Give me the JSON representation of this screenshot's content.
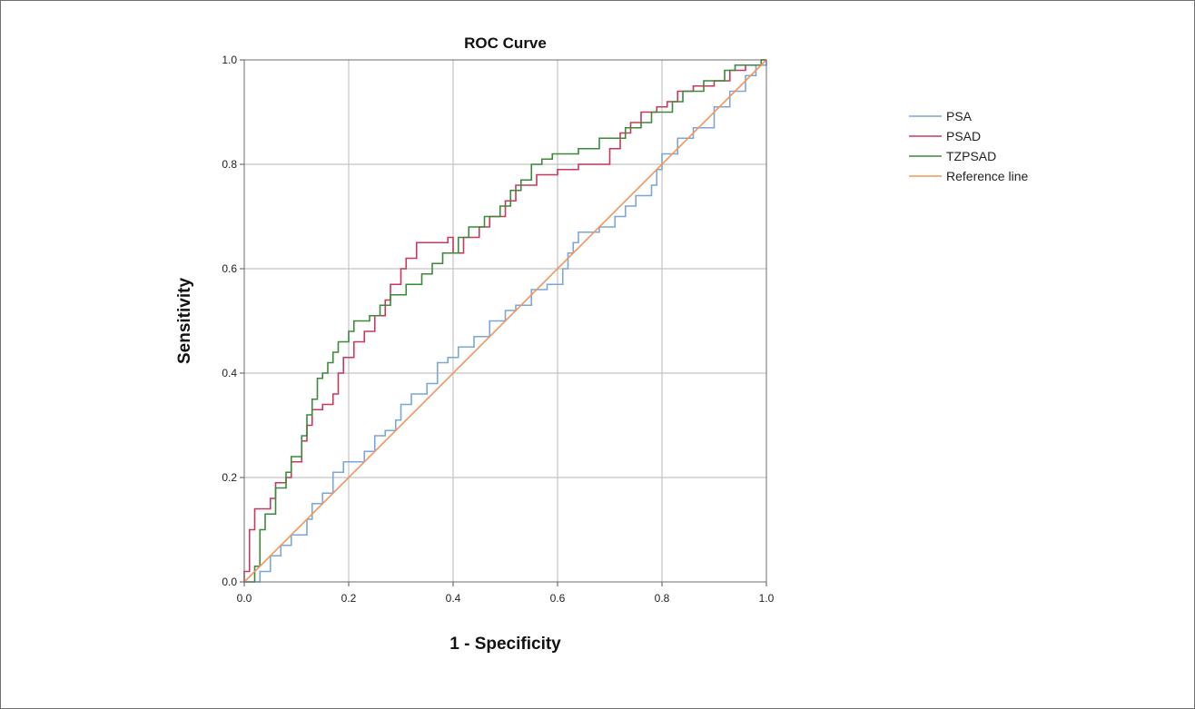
{
  "chart_data": {
    "type": "line",
    "title": "ROC Curve",
    "xlabel": "1 - Specificity",
    "ylabel": "Sensitivity",
    "xlim": [
      0.0,
      1.0
    ],
    "ylim": [
      0.0,
      1.0
    ],
    "xticks": [
      "0.0",
      "0.2",
      "0.4",
      "0.6",
      "0.8",
      "1.0"
    ],
    "yticks": [
      "0.0",
      "0.2",
      "0.4",
      "0.6",
      "0.8",
      "1.0"
    ],
    "grid": true,
    "legend_position": "right",
    "series": [
      {
        "name": "PSA",
        "color": "#7aa6d8",
        "step": true,
        "points": [
          [
            0,
            0
          ],
          [
            0.03,
            0
          ],
          [
            0.03,
            0.02
          ],
          [
            0.05,
            0.02
          ],
          [
            0.05,
            0.05
          ],
          [
            0.07,
            0.05
          ],
          [
            0.07,
            0.07
          ],
          [
            0.09,
            0.07
          ],
          [
            0.09,
            0.09
          ],
          [
            0.12,
            0.09
          ],
          [
            0.12,
            0.12
          ],
          [
            0.13,
            0.12
          ],
          [
            0.13,
            0.15
          ],
          [
            0.15,
            0.15
          ],
          [
            0.15,
            0.17
          ],
          [
            0.17,
            0.17
          ],
          [
            0.17,
            0.21
          ],
          [
            0.19,
            0.21
          ],
          [
            0.19,
            0.23
          ],
          [
            0.23,
            0.23
          ],
          [
            0.23,
            0.25
          ],
          [
            0.25,
            0.25
          ],
          [
            0.25,
            0.28
          ],
          [
            0.27,
            0.28
          ],
          [
            0.27,
            0.29
          ],
          [
            0.29,
            0.29
          ],
          [
            0.29,
            0.31
          ],
          [
            0.3,
            0.31
          ],
          [
            0.3,
            0.34
          ],
          [
            0.32,
            0.34
          ],
          [
            0.32,
            0.36
          ],
          [
            0.35,
            0.36
          ],
          [
            0.35,
            0.38
          ],
          [
            0.37,
            0.38
          ],
          [
            0.37,
            0.42
          ],
          [
            0.39,
            0.42
          ],
          [
            0.39,
            0.43
          ],
          [
            0.41,
            0.43
          ],
          [
            0.41,
            0.45
          ],
          [
            0.44,
            0.45
          ],
          [
            0.44,
            0.47
          ],
          [
            0.47,
            0.47
          ],
          [
            0.47,
            0.5
          ],
          [
            0.5,
            0.5
          ],
          [
            0.5,
            0.52
          ],
          [
            0.52,
            0.52
          ],
          [
            0.52,
            0.53
          ],
          [
            0.55,
            0.53
          ],
          [
            0.55,
            0.56
          ],
          [
            0.58,
            0.56
          ],
          [
            0.58,
            0.57
          ],
          [
            0.61,
            0.57
          ],
          [
            0.61,
            0.6
          ],
          [
            0.62,
            0.6
          ],
          [
            0.62,
            0.63
          ],
          [
            0.63,
            0.63
          ],
          [
            0.63,
            0.65
          ],
          [
            0.64,
            0.65
          ],
          [
            0.64,
            0.67
          ],
          [
            0.68,
            0.67
          ],
          [
            0.68,
            0.68
          ],
          [
            0.71,
            0.68
          ],
          [
            0.71,
            0.7
          ],
          [
            0.73,
            0.7
          ],
          [
            0.73,
            0.72
          ],
          [
            0.75,
            0.72
          ],
          [
            0.75,
            0.74
          ],
          [
            0.78,
            0.74
          ],
          [
            0.78,
            0.76
          ],
          [
            0.79,
            0.76
          ],
          [
            0.79,
            0.79
          ],
          [
            0.8,
            0.79
          ],
          [
            0.8,
            0.82
          ],
          [
            0.83,
            0.82
          ],
          [
            0.83,
            0.85
          ],
          [
            0.86,
            0.85
          ],
          [
            0.86,
            0.87
          ],
          [
            0.9,
            0.87
          ],
          [
            0.9,
            0.91
          ],
          [
            0.93,
            0.91
          ],
          [
            0.93,
            0.94
          ],
          [
            0.96,
            0.94
          ],
          [
            0.96,
            0.97
          ],
          [
            0.98,
            0.97
          ],
          [
            0.98,
            0.99
          ],
          [
            1,
            0.99
          ],
          [
            1,
            1
          ]
        ]
      },
      {
        "name": "PSAD",
        "color": "#c8385a",
        "step": true,
        "points": [
          [
            0,
            0
          ],
          [
            0,
            0.02
          ],
          [
            0.01,
            0.02
          ],
          [
            0.01,
            0.1
          ],
          [
            0.02,
            0.1
          ],
          [
            0.02,
            0.14
          ],
          [
            0.05,
            0.14
          ],
          [
            0.05,
            0.16
          ],
          [
            0.06,
            0.16
          ],
          [
            0.06,
            0.19
          ],
          [
            0.08,
            0.19
          ],
          [
            0.08,
            0.2
          ],
          [
            0.09,
            0.2
          ],
          [
            0.09,
            0.23
          ],
          [
            0.11,
            0.23
          ],
          [
            0.11,
            0.27
          ],
          [
            0.12,
            0.27
          ],
          [
            0.12,
            0.3
          ],
          [
            0.13,
            0.3
          ],
          [
            0.13,
            0.33
          ],
          [
            0.15,
            0.33
          ],
          [
            0.15,
            0.34
          ],
          [
            0.17,
            0.34
          ],
          [
            0.17,
            0.36
          ],
          [
            0.18,
            0.36
          ],
          [
            0.18,
            0.4
          ],
          [
            0.19,
            0.4
          ],
          [
            0.19,
            0.43
          ],
          [
            0.21,
            0.43
          ],
          [
            0.21,
            0.46
          ],
          [
            0.23,
            0.46
          ],
          [
            0.23,
            0.48
          ],
          [
            0.25,
            0.48
          ],
          [
            0.25,
            0.51
          ],
          [
            0.27,
            0.51
          ],
          [
            0.27,
            0.54
          ],
          [
            0.28,
            0.54
          ],
          [
            0.28,
            0.57
          ],
          [
            0.3,
            0.57
          ],
          [
            0.3,
            0.6
          ],
          [
            0.31,
            0.6
          ],
          [
            0.31,
            0.62
          ],
          [
            0.33,
            0.62
          ],
          [
            0.33,
            0.65
          ],
          [
            0.39,
            0.65
          ],
          [
            0.39,
            0.66
          ],
          [
            0.4,
            0.66
          ],
          [
            0.4,
            0.63
          ],
          [
            0.42,
            0.63
          ],
          [
            0.42,
            0.66
          ],
          [
            0.45,
            0.66
          ],
          [
            0.45,
            0.68
          ],
          [
            0.47,
            0.68
          ],
          [
            0.47,
            0.7
          ],
          [
            0.5,
            0.7
          ],
          [
            0.5,
            0.73
          ],
          [
            0.52,
            0.73
          ],
          [
            0.52,
            0.76
          ],
          [
            0.56,
            0.76
          ],
          [
            0.56,
            0.78
          ],
          [
            0.6,
            0.78
          ],
          [
            0.6,
            0.79
          ],
          [
            0.64,
            0.79
          ],
          [
            0.64,
            0.8
          ],
          [
            0.7,
            0.8
          ],
          [
            0.7,
            0.83
          ],
          [
            0.72,
            0.83
          ],
          [
            0.72,
            0.86
          ],
          [
            0.74,
            0.86
          ],
          [
            0.74,
            0.88
          ],
          [
            0.76,
            0.88
          ],
          [
            0.76,
            0.9
          ],
          [
            0.79,
            0.9
          ],
          [
            0.79,
            0.91
          ],
          [
            0.81,
            0.91
          ],
          [
            0.81,
            0.92
          ],
          [
            0.83,
            0.92
          ],
          [
            0.83,
            0.94
          ],
          [
            0.86,
            0.94
          ],
          [
            0.86,
            0.95
          ],
          [
            0.9,
            0.95
          ],
          [
            0.9,
            0.96
          ],
          [
            0.93,
            0.96
          ],
          [
            0.93,
            0.98
          ],
          [
            0.96,
            0.98
          ],
          [
            0.96,
            0.99
          ],
          [
            0.99,
            0.99
          ],
          [
            0.99,
            1
          ],
          [
            1,
            1
          ]
        ]
      },
      {
        "name": "TZPSAD",
        "color": "#3a8a3a",
        "step": true,
        "points": [
          [
            0,
            0
          ],
          [
            0.02,
            0
          ],
          [
            0.02,
            0.03
          ],
          [
            0.03,
            0.03
          ],
          [
            0.03,
            0.1
          ],
          [
            0.04,
            0.1
          ],
          [
            0.04,
            0.13
          ],
          [
            0.06,
            0.13
          ],
          [
            0.06,
            0.18
          ],
          [
            0.08,
            0.18
          ],
          [
            0.08,
            0.21
          ],
          [
            0.09,
            0.21
          ],
          [
            0.09,
            0.24
          ],
          [
            0.11,
            0.24
          ],
          [
            0.11,
            0.28
          ],
          [
            0.12,
            0.28
          ],
          [
            0.12,
            0.32
          ],
          [
            0.13,
            0.32
          ],
          [
            0.13,
            0.35
          ],
          [
            0.14,
            0.35
          ],
          [
            0.14,
            0.39
          ],
          [
            0.15,
            0.39
          ],
          [
            0.15,
            0.4
          ],
          [
            0.16,
            0.4
          ],
          [
            0.16,
            0.42
          ],
          [
            0.17,
            0.42
          ],
          [
            0.17,
            0.44
          ],
          [
            0.18,
            0.44
          ],
          [
            0.18,
            0.46
          ],
          [
            0.2,
            0.46
          ],
          [
            0.2,
            0.48
          ],
          [
            0.21,
            0.48
          ],
          [
            0.21,
            0.5
          ],
          [
            0.24,
            0.5
          ],
          [
            0.24,
            0.51
          ],
          [
            0.26,
            0.51
          ],
          [
            0.26,
            0.53
          ],
          [
            0.28,
            0.53
          ],
          [
            0.28,
            0.55
          ],
          [
            0.31,
            0.55
          ],
          [
            0.31,
            0.57
          ],
          [
            0.34,
            0.57
          ],
          [
            0.34,
            0.59
          ],
          [
            0.36,
            0.59
          ],
          [
            0.36,
            0.61
          ],
          [
            0.38,
            0.61
          ],
          [
            0.38,
            0.63
          ],
          [
            0.41,
            0.63
          ],
          [
            0.41,
            0.66
          ],
          [
            0.43,
            0.66
          ],
          [
            0.43,
            0.68
          ],
          [
            0.46,
            0.68
          ],
          [
            0.46,
            0.7
          ],
          [
            0.49,
            0.7
          ],
          [
            0.49,
            0.72
          ],
          [
            0.51,
            0.72
          ],
          [
            0.51,
            0.75
          ],
          [
            0.53,
            0.75
          ],
          [
            0.53,
            0.77
          ],
          [
            0.55,
            0.77
          ],
          [
            0.55,
            0.8
          ],
          [
            0.57,
            0.8
          ],
          [
            0.57,
            0.81
          ],
          [
            0.59,
            0.81
          ],
          [
            0.59,
            0.82
          ],
          [
            0.64,
            0.82
          ],
          [
            0.64,
            0.83
          ],
          [
            0.68,
            0.83
          ],
          [
            0.68,
            0.85
          ],
          [
            0.73,
            0.85
          ],
          [
            0.73,
            0.87
          ],
          [
            0.76,
            0.87
          ],
          [
            0.76,
            0.88
          ],
          [
            0.78,
            0.88
          ],
          [
            0.78,
            0.9
          ],
          [
            0.82,
            0.9
          ],
          [
            0.82,
            0.92
          ],
          [
            0.84,
            0.92
          ],
          [
            0.84,
            0.94
          ],
          [
            0.88,
            0.94
          ],
          [
            0.88,
            0.96
          ],
          [
            0.92,
            0.96
          ],
          [
            0.92,
            0.98
          ],
          [
            0.94,
            0.98
          ],
          [
            0.94,
            0.99
          ],
          [
            0.99,
            0.99
          ],
          [
            0.99,
            1
          ],
          [
            1,
            1
          ]
        ]
      },
      {
        "name": "Reference line",
        "color": "#f0965a",
        "step": false,
        "points": [
          [
            0,
            0
          ],
          [
            1,
            1
          ]
        ]
      }
    ]
  }
}
